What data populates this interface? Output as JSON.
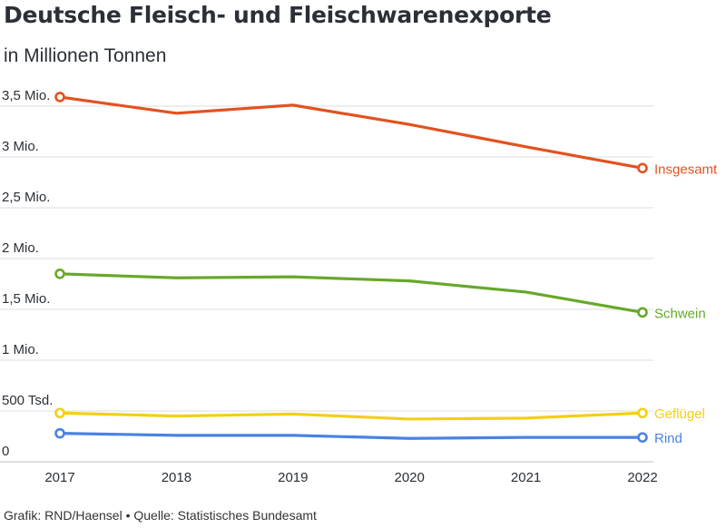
{
  "title": "Deutsche Fleisch- und Fleischwarenexporte",
  "subtitle": "in Millionen Tonnen",
  "footer": "Grafik: RND/Haensel • Quelle: Statistisches Bundesamt",
  "chart_data": {
    "type": "line",
    "x": [
      "2017",
      "2018",
      "2019",
      "2020",
      "2021",
      "2022"
    ],
    "yticks": [
      {
        "value": 0,
        "label": "0"
      },
      {
        "value": 0.5,
        "label": "500 Tsd."
      },
      {
        "value": 1.0,
        "label": "1 Mio."
      },
      {
        "value": 1.5,
        "label": "1,5 Mio."
      },
      {
        "value": 2.0,
        "label": "2 Mio."
      },
      {
        "value": 2.5,
        "label": "2,5 Mio."
      },
      {
        "value": 3.0,
        "label": "3 Mio."
      },
      {
        "value": 3.5,
        "label": "3,5 Mio."
      }
    ],
    "ylim": [
      0,
      3.5
    ],
    "grid": true,
    "series": [
      {
        "name": "Insgesamt",
        "color": "#e2521f",
        "values": [
          3.59,
          3.43,
          3.51,
          3.32,
          3.1,
          2.89
        ]
      },
      {
        "name": "Schwein",
        "color": "#67a82b",
        "values": [
          1.85,
          1.81,
          1.82,
          1.78,
          1.67,
          1.47
        ]
      },
      {
        "name": "Geflügel",
        "color": "#f3cf17",
        "values": [
          0.48,
          0.45,
          0.47,
          0.42,
          0.43,
          0.48
        ]
      },
      {
        "name": "Rind",
        "color": "#4a82e3",
        "values": [
          0.28,
          0.26,
          0.26,
          0.23,
          0.24,
          0.24
        ]
      }
    ]
  }
}
